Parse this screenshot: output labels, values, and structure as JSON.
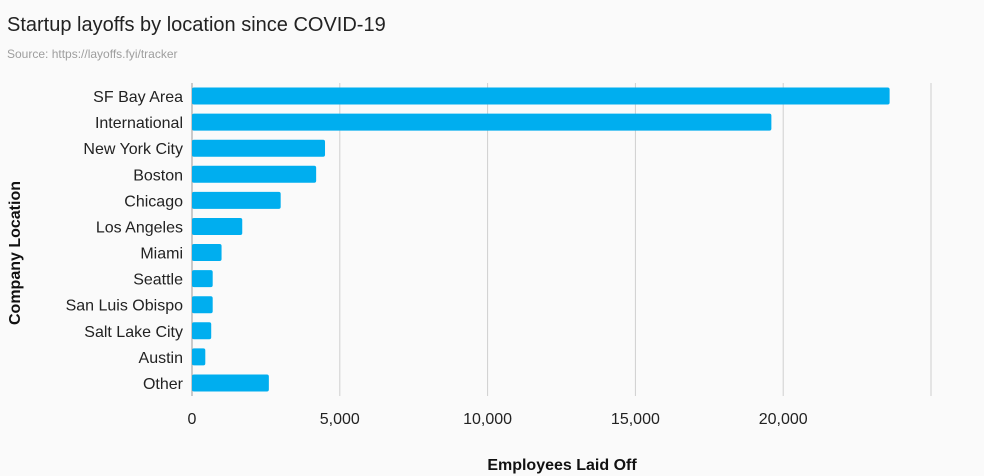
{
  "header": {
    "title": "Startup layoffs by location since COVID-19",
    "source": "Source: https://layoffs.fyi/tracker"
  },
  "chart_data": {
    "type": "bar",
    "orientation": "horizontal",
    "title": "Startup layoffs by location since COVID-19",
    "subtitle": "Source: https://layoffs.fyi/tracker",
    "xlabel": "Employees Laid Off",
    "ylabel": "Company Location",
    "categories": [
      "SF Bay Area",
      "International",
      "New York City",
      "Boston",
      "Chicago",
      "Los Angeles",
      "Miami",
      "Seattle",
      "San Luis Obispo",
      "Salt Lake City",
      "Austin",
      "Other"
    ],
    "values": [
      23600,
      19600,
      4500,
      4200,
      3000,
      1700,
      1000,
      700,
      700,
      650,
      450,
      2600
    ],
    "xlim": [
      0,
      25000
    ],
    "xticks": [
      0,
      5000,
      10000,
      15000,
      20000
    ],
    "xtick_labels": [
      "0",
      "5,000",
      "10,000",
      "15,000",
      "20,000"
    ],
    "bar_color": "#00aeef",
    "grid": true
  }
}
